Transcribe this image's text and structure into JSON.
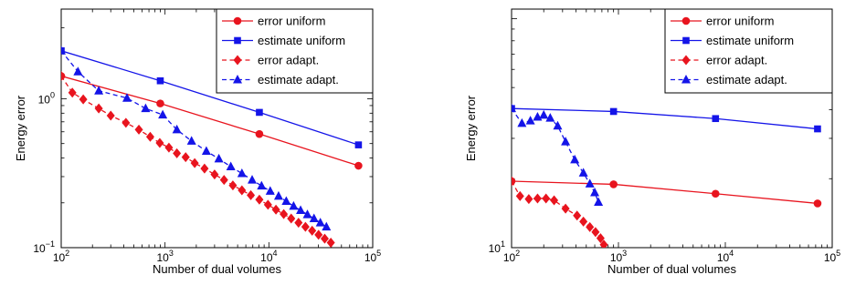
{
  "chart_data": [
    {
      "type": "line",
      "xscale": "log",
      "yscale": "log",
      "xlim": [
        100,
        100000
      ],
      "ylim": [
        0.1,
        4
      ],
      "xlabel": "Number of dual volumes",
      "ylabel": "Energy error",
      "xticks": [
        100,
        1000,
        10000,
        100000
      ],
      "xtick_labels": [
        {
          "base": "10",
          "exp": "2"
        },
        {
          "base": "10",
          "exp": "3"
        },
        {
          "base": "10",
          "exp": "4"
        },
        {
          "base": "10",
          "exp": "5"
        }
      ],
      "yticks": [
        0.1,
        1
      ],
      "ytick_labels": [
        {
          "base": "10",
          "exp": "−1"
        },
        {
          "base": "10",
          "exp": "0"
        }
      ],
      "legend_position": "top-right",
      "grid": false,
      "series": [
        {
          "name": "error uniform",
          "color": "#e8141e",
          "linestyle": "solid",
          "marker": "circle",
          "x": [
            100,
            900,
            8100,
            72900
          ],
          "y": [
            1.42,
            0.93,
            0.58,
            0.355
          ]
        },
        {
          "name": "estimate uniform",
          "color": "#1414e8",
          "linestyle": "solid",
          "marker": "square",
          "x": [
            100,
            900,
            8100,
            72900
          ],
          "y": [
            2.1,
            1.32,
            0.81,
            0.49
          ]
        },
        {
          "name": "error adapt.",
          "color": "#e8141e",
          "linestyle": "dashed",
          "marker": "diamond",
          "x": [
            100,
            128,
            163,
            230,
            300,
            420,
            560,
            720,
            890,
            1090,
            1300,
            1580,
            1930,
            2400,
            3000,
            3700,
            4500,
            5500,
            6700,
            8100,
            9800,
            11700,
            13900,
            16400,
            19300,
            22500,
            26100,
            30100,
            34500,
            39500
          ],
          "y": [
            1.42,
            1.1,
            0.99,
            0.86,
            0.77,
            0.69,
            0.62,
            0.555,
            0.505,
            0.47,
            0.43,
            0.405,
            0.37,
            0.34,
            0.31,
            0.285,
            0.262,
            0.243,
            0.225,
            0.21,
            0.194,
            0.18,
            0.168,
            0.157,
            0.147,
            0.138,
            0.13,
            0.122,
            0.115,
            0.108
          ]
        },
        {
          "name": "estimate adapt.",
          "color": "#1414e8",
          "linestyle": "dashed",
          "marker": "triangle",
          "x": [
            100,
            145,
            230,
            430,
            650,
            950,
            1300,
            1800,
            2500,
            3300,
            4300,
            5500,
            6900,
            8500,
            10300,
            12400,
            14700,
            17300,
            20200,
            23500,
            27200,
            31300,
            35800
          ],
          "y": [
            2.1,
            1.52,
            1.13,
            1.01,
            0.86,
            0.78,
            0.62,
            0.52,
            0.445,
            0.395,
            0.35,
            0.315,
            0.285,
            0.26,
            0.24,
            0.222,
            0.205,
            0.19,
            0.178,
            0.167,
            0.157,
            0.147,
            0.138
          ]
        }
      ]
    },
    {
      "type": "line",
      "xscale": "log",
      "yscale": "log",
      "xlim": [
        100,
        100000
      ],
      "ylim": [
        10,
        110
      ],
      "xlabel": "Number of dual volumes",
      "ylabel": "Energy error",
      "xticks": [
        100,
        1000,
        10000,
        100000
      ],
      "xtick_labels": [
        {
          "base": "10",
          "exp": "2"
        },
        {
          "base": "10",
          "exp": "3"
        },
        {
          "base": "10",
          "exp": "4"
        },
        {
          "base": "10",
          "exp": "5"
        }
      ],
      "yticks": [
        10
      ],
      "ytick_labels": [
        {
          "base": "10",
          "exp": "1"
        }
      ],
      "legend_position": "top-right",
      "grid": false,
      "series": [
        {
          "name": "error uniform",
          "color": "#e8141e",
          "linestyle": "solid",
          "marker": "circle",
          "x": [
            100,
            900,
            8100,
            72900
          ],
          "y": [
            19.5,
            18.9,
            17.2,
            15.6
          ]
        },
        {
          "name": "estimate uniform",
          "color": "#1414e8",
          "linestyle": "solid",
          "marker": "square",
          "x": [
            100,
            900,
            8100,
            72900
          ],
          "y": [
            40.5,
            39.3,
            36.6,
            33.0
          ]
        },
        {
          "name": "error adapt.",
          "color": "#e8141e",
          "linestyle": "dashed",
          "marker": "diamond",
          "x": [
            100,
            120,
            145,
            175,
            210,
            250,
            320,
            410,
            470,
            540,
            610,
            680,
            730
          ],
          "y": [
            19.5,
            16.8,
            16.3,
            16.4,
            16.4,
            16.1,
            14.8,
            13.8,
            13.0,
            12.3,
            11.7,
            11.0,
            10.3
          ]
        },
        {
          "name": "estimate adapt.",
          "color": "#1414e8",
          "linestyle": "dashed",
          "marker": "triangle",
          "x": [
            100,
            125,
            150,
            175,
            200,
            230,
            270,
            320,
            390,
            470,
            540,
            600,
            650
          ],
          "y": [
            40.5,
            34.9,
            35.8,
            37.2,
            37.9,
            36.8,
            34.0,
            29.0,
            24.2,
            21.2,
            19.0,
            17.4,
            15.8
          ]
        }
      ]
    }
  ]
}
